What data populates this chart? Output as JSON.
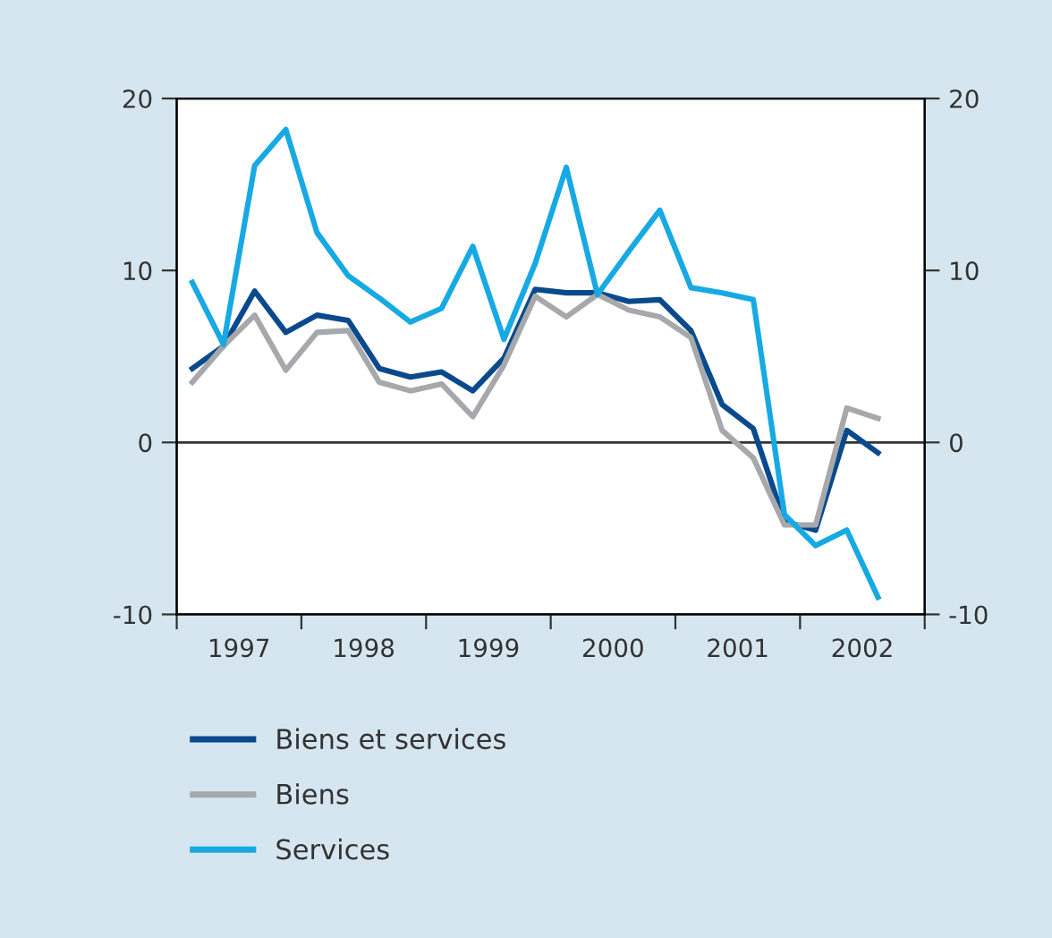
{
  "chart_data": {
    "type": "line",
    "x": [
      1997.125,
      1997.375,
      1997.625,
      1997.875,
      1998.125,
      1998.375,
      1998.625,
      1998.875,
      1999.125,
      1999.375,
      1999.625,
      1999.875,
      2000.125,
      2000.375,
      2000.625,
      2000.875,
      2001.125,
      2001.375,
      2001.625,
      2001.875,
      2002.125,
      2002.375,
      2002.625
    ],
    "series": [
      {
        "name": "Biens et services",
        "color": "#0a4a8c",
        "values": [
          4.3,
          5.6,
          8.8,
          6.4,
          7.4,
          7.1,
          4.3,
          3.8,
          4.1,
          3.0,
          4.9,
          8.9,
          8.7,
          8.7,
          8.2,
          8.3,
          6.5,
          2.2,
          0.8,
          -4.6,
          -5.1,
          0.7,
          -0.6
        ]
      },
      {
        "name": "Biens",
        "color": "#a6a8ab",
        "values": [
          3.5,
          5.6,
          7.4,
          4.2,
          6.4,
          6.5,
          3.5,
          3.0,
          3.4,
          1.5,
          4.5,
          8.5,
          7.3,
          8.6,
          7.7,
          7.3,
          6.1,
          0.7,
          -0.9,
          -4.8,
          -4.8,
          2.0,
          1.4
        ]
      },
      {
        "name": "Services",
        "color": "#17a9e3",
        "values": [
          9.3,
          5.7,
          16.1,
          18.2,
          12.2,
          9.7,
          8.4,
          7.0,
          7.8,
          11.4,
          6.0,
          10.4,
          16.0,
          8.6,
          11.1,
          13.5,
          9.0,
          8.7,
          8.3,
          -4.2,
          -6.0,
          -5.1,
          -9.0
        ]
      }
    ],
    "xlim": [
      1997,
      2003
    ],
    "xticks": [
      {
        "value": 1997,
        "label": null
      },
      {
        "value": 1997.5,
        "label": "1997"
      },
      {
        "value": 1998,
        "label": null
      },
      {
        "value": 1998.5,
        "label": "1998"
      },
      {
        "value": 1999,
        "label": null
      },
      {
        "value": 1999.5,
        "label": "1999"
      },
      {
        "value": 2000,
        "label": null
      },
      {
        "value": 2000.5,
        "label": "2000"
      },
      {
        "value": 2001,
        "label": null
      },
      {
        "value": 2001.5,
        "label": "2001"
      },
      {
        "value": 2002,
        "label": null
      },
      {
        "value": 2002.5,
        "label": "2002"
      },
      {
        "value": 2003,
        "label": null
      }
    ],
    "ylim": [
      -10,
      20
    ],
    "yticks": [
      {
        "value": -10,
        "label": "-10"
      },
      0,
      10,
      20
    ],
    "y2lim": [
      -10,
      20
    ],
    "y2ticks": [
      {
        "value": -10,
        "label": "-10"
      },
      0,
      10,
      20
    ],
    "ref_lines": [
      {
        "axis": "y",
        "value": 0,
        "color": "#333333"
      }
    ],
    "grid": false,
    "legend": "bottom",
    "marker": "none",
    "line_style": "solid"
  }
}
